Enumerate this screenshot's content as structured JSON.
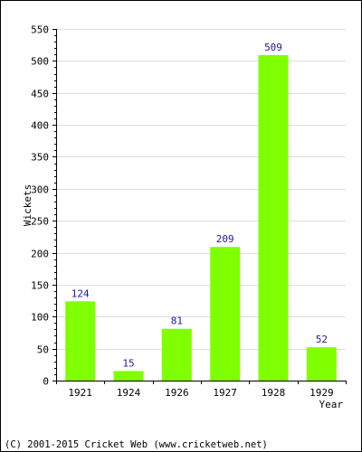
{
  "chart_data": {
    "type": "bar",
    "title": "",
    "xlabel": "Year",
    "ylabel": "Wickets",
    "categories": [
      "1921",
      "1924",
      "1926",
      "1927",
      "1928",
      "1929"
    ],
    "series": [
      {
        "values": [
          124,
          15,
          81,
          209,
          509,
          52
        ]
      }
    ],
    "ylim": [
      0,
      550
    ],
    "yticks": [
      0,
      50,
      100,
      150,
      200,
      250,
      300,
      350,
      400,
      450,
      500,
      550
    ],
    "grid": true,
    "data_labels": true,
    "colors": {
      "bar": "#80ff00",
      "data_label": "#1a1a99",
      "grid": "#dddddd"
    }
  },
  "footer": {
    "text": "(C) 2001-2015 Cricket Web (www.cricketweb.net)"
  }
}
